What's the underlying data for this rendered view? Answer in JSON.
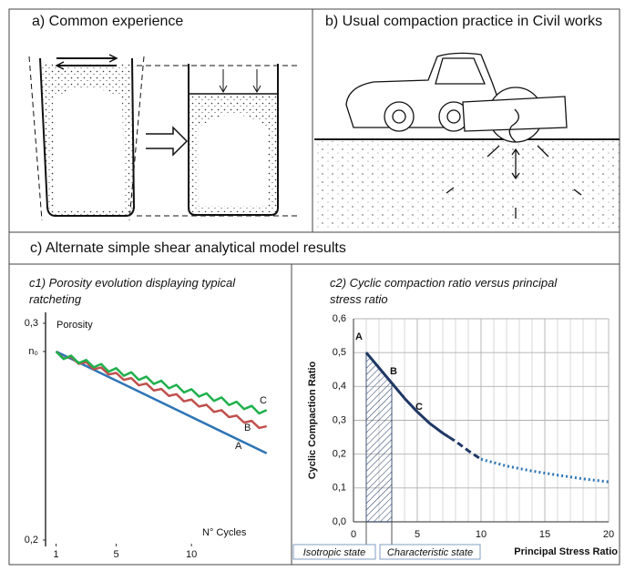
{
  "panels": {
    "a": {
      "title": "a) Common experience"
    },
    "b": {
      "title": "b) Usual compaction practice in Civil works"
    },
    "c": {
      "title": "c) Alternate simple shear analytical model results"
    }
  },
  "chart_data": [
    {
      "type": "line",
      "title": "c1) Porosity evolution displaying typical ratcheting",
      "ylabel": "Porosity",
      "xlabel": "N° Cycles",
      "xlim": [
        0.3,
        15.2
      ],
      "ylim": [
        0.2,
        0.3
      ],
      "xticks": [
        1,
        5,
        10
      ],
      "yticks": [
        {
          "value": 0.3,
          "label": "0,3"
        },
        {
          "value": 0.287,
          "label": "n₀"
        },
        {
          "value": 0.2,
          "label": "0,2"
        }
      ],
      "grid": false,
      "series": [
        {
          "name": "A",
          "color": "#2e75b6",
          "x": [
            1,
            15
          ],
          "values": [
            0.287,
            0.24
          ]
        },
        {
          "name": "B",
          "color": "#c0504d",
          "x": [
            1,
            1.5,
            2,
            2.5,
            3,
            3.5,
            4,
            4.5,
            5,
            5.5,
            6,
            6.5,
            7,
            7.5,
            8,
            8.5,
            9,
            9.5,
            10,
            10.5,
            11,
            11.5,
            12,
            12.5,
            13,
            13.5,
            14,
            14.5,
            15
          ],
          "values": [
            0.287,
            0.2838,
            0.2845,
            0.2813,
            0.2821,
            0.2788,
            0.2796,
            0.2764,
            0.2771,
            0.2739,
            0.2747,
            0.2714,
            0.2722,
            0.269,
            0.2697,
            0.2665,
            0.2673,
            0.264,
            0.2648,
            0.2616,
            0.2624,
            0.2591,
            0.2599,
            0.2567,
            0.2574,
            0.2542,
            0.255,
            0.2517,
            0.2525
          ]
        },
        {
          "name": "C",
          "color": "#1fb04c",
          "x": [
            1,
            1.5,
            2,
            2.5,
            3,
            3.5,
            4,
            4.5,
            5,
            5.5,
            6,
            6.5,
            7,
            7.5,
            8,
            8.5,
            9,
            9.5,
            10,
            10.5,
            11,
            11.5,
            12,
            12.5,
            13,
            13.5,
            14,
            14.5,
            15
          ],
          "values": [
            0.287,
            0.2835,
            0.2851,
            0.2816,
            0.2831,
            0.2797,
            0.2812,
            0.2777,
            0.2793,
            0.2758,
            0.2774,
            0.2739,
            0.2754,
            0.272,
            0.2735,
            0.27,
            0.2716,
            0.2681,
            0.2696,
            0.2662,
            0.2677,
            0.2642,
            0.2658,
            0.2623,
            0.2638,
            0.2604,
            0.2619,
            0.2584,
            0.26
          ]
        }
      ]
    },
    {
      "type": "line",
      "title": "c2) Cyclic compaction ratio  versus principal stress ratio",
      "ylabel": "Cyclic Compaction Ratio",
      "xlabel": "Principal Stress Ratio",
      "xlim": [
        0,
        20
      ],
      "ylim": [
        0,
        0.6
      ],
      "xticks": [
        0,
        5,
        10,
        15,
        20
      ],
      "xminorticks": [
        1,
        2,
        3,
        4,
        6,
        7,
        8,
        9,
        11,
        12,
        13,
        14,
        16,
        17,
        18,
        19
      ],
      "yticks": [
        {
          "value": 0,
          "label": "0,0"
        },
        {
          "value": 0.1,
          "label": "0,1"
        },
        {
          "value": 0.2,
          "label": "0,2"
        },
        {
          "value": 0.3,
          "label": "0,3"
        },
        {
          "value": 0.4,
          "label": "0,4"
        },
        {
          "value": 0.5,
          "label": "0,5"
        },
        {
          "value": 0.6,
          "label": "0,6"
        }
      ],
      "grid": true,
      "series": [
        {
          "color": "#1f3864",
          "dash": "solid",
          "x": [
            1,
            2,
            3,
            4,
            5,
            6,
            7,
            7.5
          ],
          "values": [
            0.5,
            0.455,
            0.41,
            0.365,
            0.325,
            0.29,
            0.262,
            0.25
          ]
        },
        {
          "color": "#1f3864",
          "dash": "dashed",
          "x": [
            7.5,
            8,
            9,
            10
          ],
          "values": [
            0.25,
            0.238,
            0.21,
            0.185
          ]
        },
        {
          "color": "#2e75b6",
          "dash": "dotted",
          "x": [
            10,
            12,
            14,
            16,
            18,
            20
          ],
          "values": [
            0.185,
            0.165,
            0.15,
            0.138,
            0.127,
            0.118
          ]
        }
      ],
      "hatch": [
        1,
        3
      ],
      "annotations": [
        {
          "text": "A",
          "color": "#2e75b6"
        },
        {
          "text": "B",
          "color": "#c00000"
        },
        {
          "text": "C",
          "color": "#1fb04c"
        }
      ],
      "states": [
        "Isotropic state",
        "Characteristic state"
      ]
    }
  ]
}
